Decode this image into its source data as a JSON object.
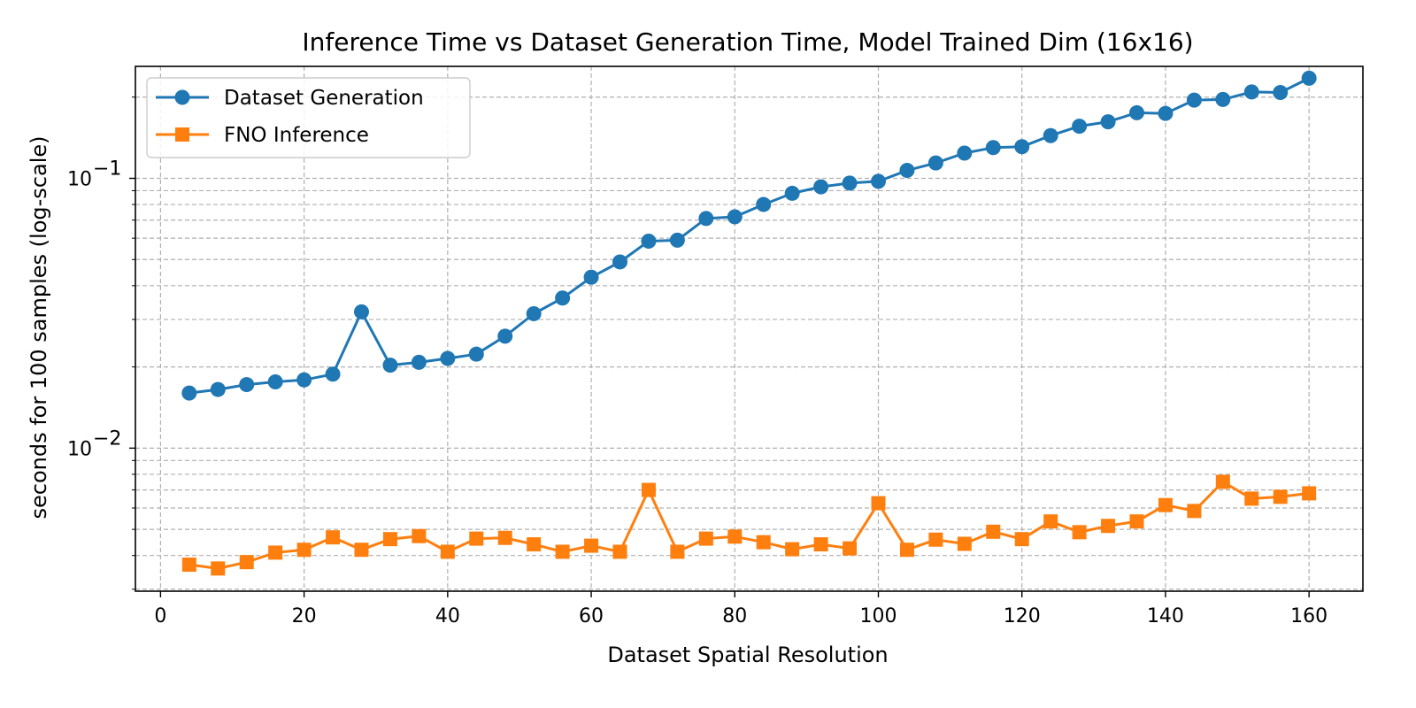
{
  "chart_data": {
    "type": "line",
    "title": "Inference Time vs Dataset Generation Time, Model Trained Dim (16x16)",
    "xlabel": "Dataset Spatial Resolution",
    "ylabel": "seconds for 100 samples (log-scale)",
    "x_scale": "linear",
    "y_scale": "log",
    "xlim": [
      -3.5,
      167.5
    ],
    "ylim": [
      0.00295,
      0.26
    ],
    "x_ticks": [
      0,
      20,
      40,
      60,
      80,
      100,
      120,
      140,
      160
    ],
    "y_major_ticks": [
      {
        "value": 0.01,
        "base": "10",
        "exp": "−2"
      },
      {
        "value": 0.1,
        "base": "10",
        "exp": "−1"
      }
    ],
    "grid": true,
    "legend_position": "top-left",
    "x": [
      4,
      8,
      12,
      16,
      20,
      24,
      28,
      32,
      36,
      40,
      44,
      48,
      52,
      56,
      60,
      64,
      68,
      72,
      76,
      80,
      84,
      88,
      92,
      96,
      100,
      104,
      108,
      112,
      116,
      120,
      124,
      128,
      132,
      136,
      140,
      144,
      148,
      152,
      156,
      160
    ],
    "series": [
      {
        "name": "Dataset Generation",
        "color": "#1f77b4",
        "marker": "circle",
        "values": [
          0.016,
          0.0165,
          0.0172,
          0.0176,
          0.0179,
          0.0188,
          0.032,
          0.0203,
          0.0208,
          0.0215,
          0.0223,
          0.026,
          0.0315,
          0.036,
          0.043,
          0.049,
          0.0585,
          0.059,
          0.071,
          0.072,
          0.08,
          0.088,
          0.093,
          0.096,
          0.0975,
          0.107,
          0.114,
          0.124,
          0.13,
          0.131,
          0.144,
          0.156,
          0.162,
          0.175,
          0.174,
          0.195,
          0.196,
          0.209,
          0.208,
          0.235
        ]
      },
      {
        "name": "FNO Inference",
        "color": "#ff7f0e",
        "marker": "square",
        "values": [
          0.0037,
          0.00358,
          0.00378,
          0.0041,
          0.0042,
          0.00467,
          0.0042,
          0.0046,
          0.00472,
          0.00413,
          0.00462,
          0.00465,
          0.0044,
          0.00413,
          0.00435,
          0.00413,
          0.007,
          0.00413,
          0.00462,
          0.0047,
          0.00448,
          0.00422,
          0.0044,
          0.00425,
          0.00625,
          0.0042,
          0.00458,
          0.00442,
          0.0049,
          0.0046,
          0.00535,
          0.00488,
          0.00515,
          0.00535,
          0.00615,
          0.00585,
          0.0075,
          0.0065,
          0.0066,
          0.0068
        ]
      }
    ]
  }
}
